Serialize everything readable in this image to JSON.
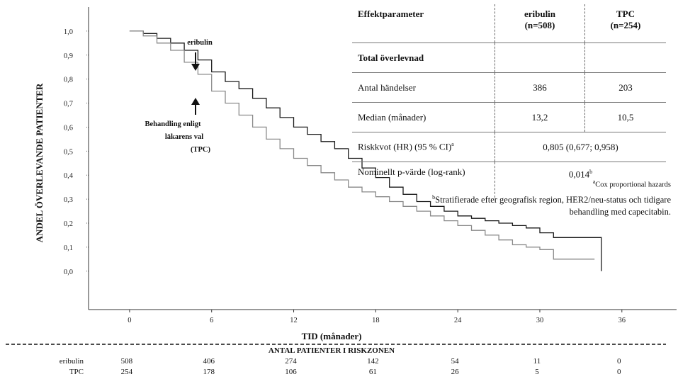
{
  "chart_data": {
    "type": "line",
    "step": true,
    "xlabel": "TID (månader)",
    "ylabel": "ANDEL ÖVERLEVANDE PATIENTER",
    "xlim": [
      -3,
      40
    ],
    "ylim": [
      -0.16,
      1.1
    ],
    "x_ticks": [
      0,
      6,
      12,
      18,
      24,
      30,
      36
    ],
    "x_tick_labels": [
      "0",
      "6",
      "12",
      "18",
      "24",
      "30",
      "36"
    ],
    "y_ticks": [
      0,
      0.1,
      0.2,
      0.3,
      0.4,
      0.5,
      0.6,
      0.7,
      0.8,
      0.9,
      1.0
    ],
    "y_tick_labels": [
      "0,0",
      "0,1",
      "0,2",
      "0,3",
      "0,4",
      "0,5",
      "0,6",
      "0,7",
      "0,8",
      "0,9",
      "1,0"
    ],
    "grid": false,
    "series": [
      {
        "name": "eribulin",
        "color": "#1a1a1a",
        "x": [
          0,
          1,
          2,
          3,
          4,
          5,
          6,
          7,
          8,
          9,
          10,
          11,
          12,
          13,
          14,
          15,
          16,
          17,
          18,
          19,
          20,
          21,
          22,
          23,
          24,
          25,
          26,
          27,
          28,
          29,
          30,
          31,
          32,
          33,
          34.5,
          34.5
        ],
        "y": [
          1.0,
          0.99,
          0.97,
          0.95,
          0.92,
          0.88,
          0.83,
          0.79,
          0.76,
          0.72,
          0.68,
          0.64,
          0.6,
          0.57,
          0.54,
          0.51,
          0.47,
          0.43,
          0.39,
          0.35,
          0.32,
          0.29,
          0.27,
          0.25,
          0.23,
          0.22,
          0.21,
          0.2,
          0.19,
          0.18,
          0.16,
          0.14,
          0.14,
          0.14,
          0.14,
          0.0
        ]
      },
      {
        "name": "TPC",
        "color": "#8a8a8a",
        "x": [
          0,
          1,
          2,
          3,
          4,
          5,
          6,
          7,
          8,
          9,
          10,
          11,
          12,
          13,
          14,
          15,
          16,
          17,
          18,
          19,
          20,
          21,
          22,
          23,
          24,
          25,
          26,
          27,
          28,
          29,
          30,
          31,
          32,
          33,
          34
        ],
        "y": [
          1.0,
          0.98,
          0.95,
          0.92,
          0.87,
          0.82,
          0.75,
          0.7,
          0.65,
          0.6,
          0.55,
          0.51,
          0.47,
          0.44,
          0.41,
          0.38,
          0.35,
          0.33,
          0.31,
          0.29,
          0.27,
          0.25,
          0.23,
          0.21,
          0.19,
          0.17,
          0.15,
          0.13,
          0.11,
          0.1,
          0.09,
          0.05,
          0.05,
          0.05,
          0.05
        ]
      }
    ],
    "annotations": {
      "eribulin_label": "eribulin",
      "tpc_label_line1": "Behandling enligt",
      "tpc_label_line2": "läkarens val",
      "tpc_label_line3": "(TPC)"
    },
    "risk_table": {
      "title": "ANTAL PATIENTER I RISKZONEN",
      "times": [
        0,
        6,
        12,
        18,
        24,
        30,
        36
      ],
      "rows": [
        {
          "label": "eribulin",
          "values": [
            "508",
            "406",
            "274",
            "142",
            "54",
            "11",
            "0"
          ]
        },
        {
          "label": "TPC",
          "values": [
            "254",
            "178",
            "106",
            "61",
            "26",
            "5",
            "0"
          ]
        }
      ]
    }
  },
  "table": {
    "header": {
      "param": "Effektparameter",
      "eribulin": "eribulin",
      "eribulin_n": "(n=508)",
      "tpc": "TPC",
      "tpc_n": "(n=254)"
    },
    "section": "Total överlevnad",
    "events": {
      "label": "Antal händelser",
      "eribulin": "386",
      "tpc": "203"
    },
    "median": {
      "label": "Median (månader)",
      "eribulin": "13,2",
      "tpc": "10,5"
    },
    "hr": {
      "label": "Riskkvot (HR) (95 % CI)",
      "label_sup": "a",
      "value": "0,805 (0,677; 0,958)"
    },
    "pvalue": {
      "label": "Nominellt p-värde (log-rank)",
      "value": "0,014",
      "value_sup": "b"
    }
  },
  "footnotes": {
    "a_mark": "a",
    "a": "Cox proportional hazards",
    "b_mark": "b",
    "b": "Stratifierade efter geografisk region, HER2/neu-status och tidigare behandling med capecitabin."
  }
}
